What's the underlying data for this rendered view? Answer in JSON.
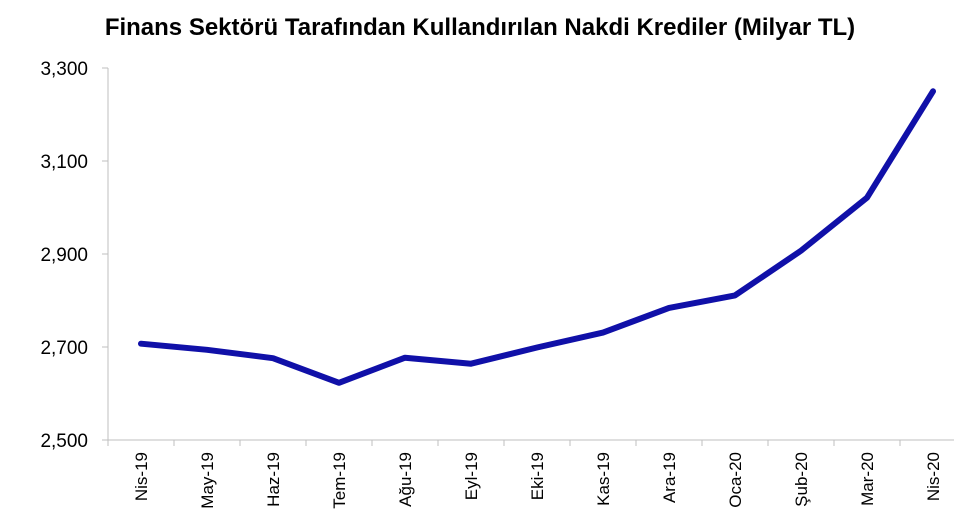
{
  "chart_data": {
    "type": "line",
    "title": "Finans Sektörü Tarafından Kullandırılan Nakdi Krediler (Milyar TL)",
    "xlabel": "",
    "ylabel": "",
    "categories": [
      "Nis-19",
      "May-19",
      "Haz-19",
      "Tem-19",
      "Ağu-19",
      "Eyl-19",
      "Eki-19",
      "Kas-19",
      "Ara-19",
      "Oca-20",
      "Şub-20",
      "Mar-20",
      "Nis-20"
    ],
    "series": [
      {
        "values": [
          2707,
          2694,
          2676,
          2623,
          2677,
          2664,
          2699,
          2731,
          2784,
          2811,
          2907,
          3021,
          3250
        ],
        "color": "#1010a8"
      }
    ],
    "ylim": [
      2500,
      3300
    ],
    "yticks": [
      2500,
      2700,
      2900,
      3100,
      3300
    ],
    "ytick_labels": [
      "2,500",
      "2,700",
      "2,900",
      "3,100",
      "3,300"
    ],
    "grid": false,
    "legend": "none"
  }
}
